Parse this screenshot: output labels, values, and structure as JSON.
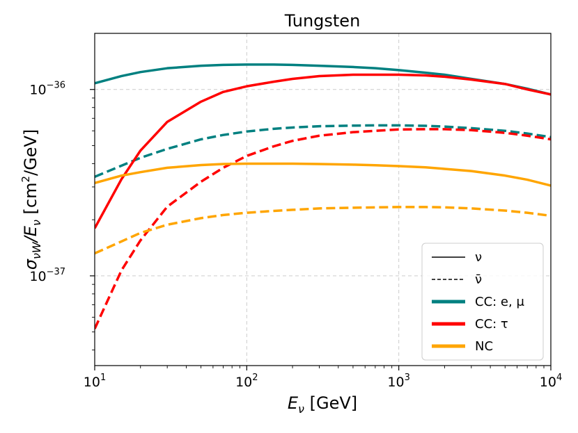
{
  "chart_data": {
    "type": "line",
    "title": "Tungsten",
    "xlabel": {
      "main": "E",
      "sub": "ν",
      "unit": " [GeV]"
    },
    "ylabel": {
      "main": "σ",
      "sub": "νW",
      "mid": "/E",
      "sub2": "ν",
      "unit_a": " [cm",
      "unit_sup": "2",
      "unit_b": "/GeV]"
    },
    "xscale": "log",
    "yscale": "log",
    "xlim": [
      10,
      10000
    ],
    "ylim": [
      3.3e-38,
      2e-36
    ],
    "grid": true,
    "x_ticks": [
      {
        "value": 10,
        "base": "10",
        "exp": "1"
      },
      {
        "value": 100,
        "base": "10",
        "exp": "2"
      },
      {
        "value": 1000,
        "base": "10",
        "exp": "3"
      },
      {
        "value": 10000,
        "base": "10",
        "exp": "4"
      }
    ],
    "y_ticks": [
      {
        "value": 1e-37,
        "base": "10",
        "exp": "−37"
      },
      {
        "value": 1e-36,
        "base": "10",
        "exp": "−36"
      }
    ],
    "x": [
      10,
      15,
      20,
      30,
      50,
      70,
      100,
      150,
      200,
      300,
      500,
      700,
      1000,
      1500,
      2000,
      3000,
      5000,
      7000,
      10000
    ],
    "series": [
      {
        "name": "CC: e, μ (ν)",
        "color": "#008080",
        "dash": false,
        "values": [
          1.08e-36,
          1.18e-36,
          1.24e-36,
          1.3e-36,
          1.34e-36,
          1.355e-36,
          1.36e-36,
          1.36e-36,
          1.355e-36,
          1.34e-36,
          1.32e-36,
          1.3e-36,
          1.27e-36,
          1.23e-36,
          1.2e-36,
          1.14e-36,
          1.07e-36,
          1.01e-36,
          9.4e-37
        ]
      },
      {
        "name": "CC: e, μ (ν̄)",
        "color": "#008080",
        "dash": true,
        "values": [
          3.4e-37,
          3.9e-37,
          4.3e-37,
          4.8e-37,
          5.4e-37,
          5.7e-37,
          5.95e-37,
          6.15e-37,
          6.25e-37,
          6.35e-37,
          6.4e-37,
          6.42e-37,
          6.42e-37,
          6.38e-37,
          6.32e-37,
          6.2e-37,
          6e-37,
          5.8e-37,
          5.55e-37
        ]
      },
      {
        "name": "CC: τ (ν)",
        "color": "#ff0000",
        "dash": false,
        "values": [
          1.8e-37,
          3.3e-37,
          4.7e-37,
          6.7e-37,
          8.6e-37,
          9.7e-37,
          1.04e-36,
          1.1e-36,
          1.14e-36,
          1.18e-36,
          1.2e-36,
          1.2e-36,
          1.2e-36,
          1.19e-36,
          1.17e-36,
          1.13e-36,
          1.07e-36,
          1e-36,
          9.4e-37
        ]
      },
      {
        "name": "CC: τ (ν̄)",
        "color": "#ff0000",
        "dash": true,
        "values": [
          5.2e-38,
          1.07e-37,
          1.55e-37,
          2.35e-37,
          3.2e-37,
          3.8e-37,
          4.4e-37,
          4.95e-37,
          5.3e-37,
          5.65e-37,
          5.9e-37,
          6e-37,
          6.1e-37,
          6.12e-37,
          6.12e-37,
          6.05e-37,
          5.85e-37,
          5.65e-37,
          5.4e-37
        ]
      },
      {
        "name": "NC (ν)",
        "color": "#ffa500",
        "dash": false,
        "values": [
          3.15e-37,
          3.45e-37,
          3.6e-37,
          3.8e-37,
          3.93e-37,
          3.98e-37,
          4e-37,
          4e-37,
          4e-37,
          3.98e-37,
          3.95e-37,
          3.92e-37,
          3.88e-37,
          3.82e-37,
          3.75e-37,
          3.65e-37,
          3.45e-37,
          3.28e-37,
          3.05e-37
        ]
      },
      {
        "name": "NC (ν̄)",
        "color": "#ffa500",
        "dash": true,
        "values": [
          1.32e-37,
          1.53e-37,
          1.7e-37,
          1.88e-37,
          2.04e-37,
          2.12e-37,
          2.18e-37,
          2.23e-37,
          2.26e-37,
          2.3e-37,
          2.32e-37,
          2.33e-37,
          2.34e-37,
          2.34e-37,
          2.33e-37,
          2.3e-37,
          2.24e-37,
          2.18e-37,
          2.1e-37
        ]
      }
    ],
    "legend": {
      "position": "lower-right",
      "entries": [
        {
          "label": "ν",
          "color": "#000000",
          "dash": false,
          "thick": false
        },
        {
          "label": "ν̄",
          "color": "#000000",
          "dash": true,
          "thick": false
        },
        {
          "label": "CC: e, μ",
          "color": "#008080",
          "dash": false,
          "thick": true
        },
        {
          "label": "CC: τ",
          "color": "#ff0000",
          "dash": false,
          "thick": true
        },
        {
          "label": "NC",
          "color": "#ffa500",
          "dash": false,
          "thick": true
        }
      ]
    }
  }
}
